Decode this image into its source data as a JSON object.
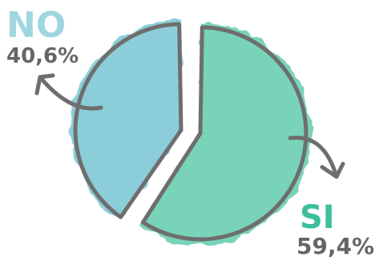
{
  "chart_data": {
    "type": "pie",
    "categories": [
      "NO",
      "SI"
    ],
    "values": [
      40.6,
      59.4
    ],
    "labels": [
      "NO",
      "SI"
    ],
    "value_labels": [
      "40,6%",
      "59,4%"
    ],
    "colors": {
      "NO": "#5bb8c9",
      "SI": "#3dbf9a",
      "NO_label": "#9fd6e0",
      "SI_label": "#3dbf9a",
      "value_text": "#666666",
      "outline": "#6e6e6e"
    },
    "style": "watercolor exploded pie with arrows pointing to labels",
    "legend": "none"
  }
}
